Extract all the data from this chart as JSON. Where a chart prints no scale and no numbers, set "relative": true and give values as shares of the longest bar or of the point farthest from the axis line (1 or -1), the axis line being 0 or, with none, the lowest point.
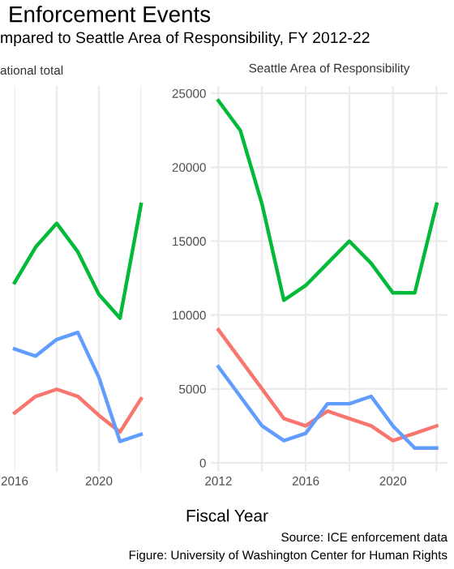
{
  "chart_data": [
    {
      "type": "line",
      "title": "Enforcement Events",
      "subtitle": "mpared to Seattle Area of Responsibility, FY 2012-22",
      "annotations": [
        "ational total"
      ],
      "relative": true,
      "x": [
        2016,
        2017,
        2018,
        2019,
        2020,
        2021,
        2022
      ],
      "xlim": [
        2016,
        2022
      ],
      "xticks": [
        2016,
        {
          "value": 2018,
          "label": null
        },
        2020,
        {
          "value": 2022,
          "label": null
        }
      ],
      "tick_labels": "x",
      "grid": "x",
      "marker": "none",
      "line_style": "solid",
      "series": [
        {
          "color": "#00ba38",
          "values": [
            0.67,
            0.82,
            0.92,
            0.8,
            0.62,
            0.52,
            1.0
          ]
        },
        {
          "color": "#f8766d",
          "values": [
            0.12,
            0.19,
            0.22,
            0.19,
            0.11,
            0.04,
            0.18
          ]
        },
        {
          "color": "#619cff",
          "values": [
            0.39,
            0.36,
            0.43,
            0.46,
            0.27,
            0,
            0.03
          ]
        }
      ]
    },
    {
      "type": "line",
      "title": "Seattle Area of Responsibility",
      "xlabel": "Fiscal Year",
      "annotations": [
        "Source: ICE enforcement data",
        "Figure: University of Washington Center for Human Rights"
      ],
      "x": [
        2012,
        2013,
        2014,
        2015,
        2016,
        2017,
        2018,
        2019,
        2020,
        2021,
        2022
      ],
      "xlim": [
        2011.65,
        2022.5
      ],
      "xticks": [
        2012,
        {
          "value": 2014,
          "label": null
        },
        2016,
        {
          "value": 2018,
          "label": null
        },
        2020,
        {
          "value": 2022,
          "label": null
        }
      ],
      "ylim": [
        -600,
        25500
      ],
      "yticks": [
        0,
        5000,
        10000,
        15000,
        20000,
        25000
      ],
      "grid": true,
      "marker": "none",
      "line_style": "solid",
      "series": [
        {
          "color": "#00ba38",
          "values": [
            24500,
            22500,
            17500,
            11000,
            12000,
            13500,
            15000,
            13500,
            11500,
            11500,
            17500
          ]
        },
        {
          "color": "#f8766d",
          "values": [
            9000,
            7000,
            5000,
            3000,
            2500,
            3500,
            3000,
            2500,
            1500,
            2000,
            2500
          ]
        },
        {
          "color": "#619cff",
          "values": [
            6500,
            4500,
            2500,
            1500,
            2000,
            4000,
            4000,
            4500,
            2500,
            1000,
            1000
          ]
        }
      ]
    }
  ]
}
